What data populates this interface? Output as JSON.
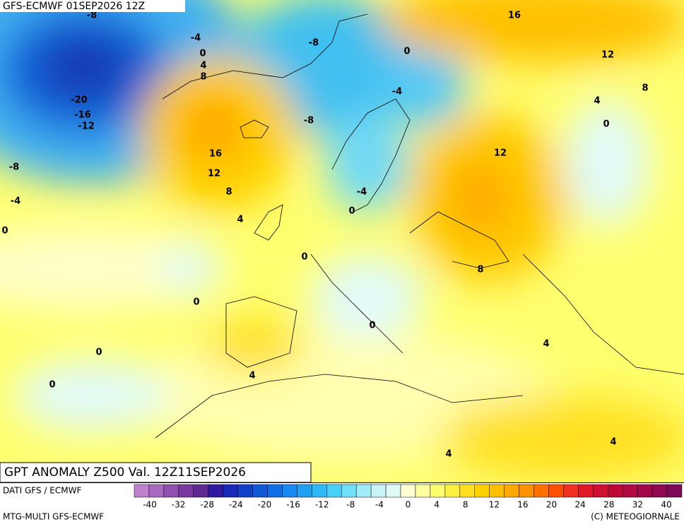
{
  "header": "GFS-ECMWF 01SEP2026 12Z",
  "map_title": "GPT ANOMALY Z500 Val. 12Z11SEP2026",
  "source": "DATI GFS / ECMWF",
  "model": "MTG-MULTI GFS-ECMWF",
  "copyright": "(C) METEOGIORNALE",
  "contour_labels": [
    -8,
    -4,
    0,
    4,
    8,
    -20,
    -16,
    -12,
    -8,
    0,
    16,
    12,
    8,
    4,
    0,
    -4,
    -8,
    16,
    12,
    8,
    12,
    -8,
    -4,
    4,
    0,
    -4,
    0,
    0,
    8,
    0,
    0,
    0,
    4,
    4,
    0,
    4,
    4
  ],
  "colorbar": {
    "labels": [
      -40,
      -32,
      -28,
      -24,
      -20,
      -16,
      -12,
      -8,
      -4,
      0,
      4,
      8,
      12,
      16,
      20,
      24,
      28,
      32,
      40
    ],
    "colors": [
      "#c080d0",
      "#a868c0",
      "#9050b0",
      "#7838a0",
      "#602890",
      "#3018a0",
      "#1828b8",
      "#1040c8",
      "#1058d8",
      "#1070e8",
      "#1888f0",
      "#20a0f0",
      "#30b8f8",
      "#48d0f8",
      "#70e0f8",
      "#a0ecf8",
      "#c8f4f8",
      "#e0fafa",
      "#ffffd0",
      "#ffffa0",
      "#ffff70",
      "#fff040",
      "#ffe020",
      "#ffd000",
      "#ffc000",
      "#ffa800",
      "#ff9000",
      "#ff7000",
      "#ff5000",
      "#f03020",
      "#e01828",
      "#d01030",
      "#c00838",
      "#b00840",
      "#a00848",
      "#900850",
      "#800858"
    ]
  }
}
